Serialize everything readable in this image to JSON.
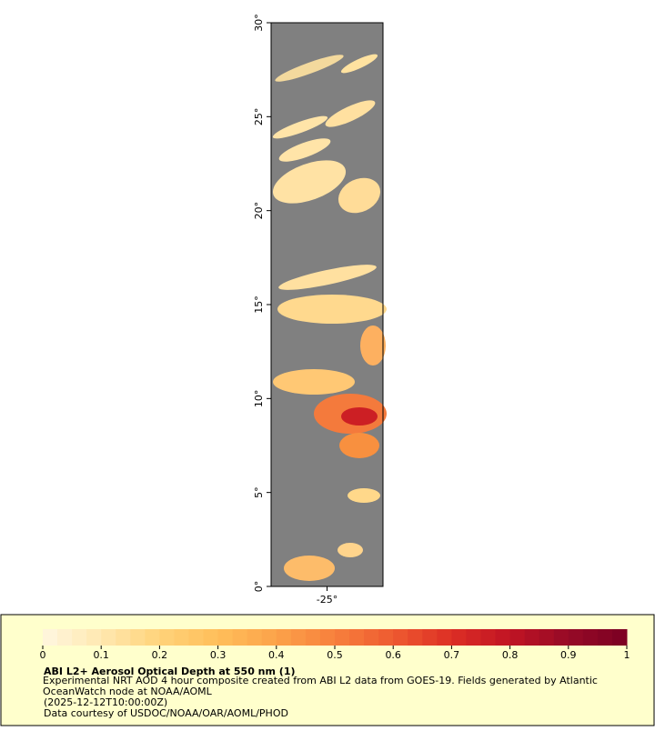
{
  "chart_data": {
    "type": "map",
    "title": "ABI L2+ Aerosol Optical Depth at 550 nm (1)",
    "subtitle": "Experimental NRT AOD 4 hour composite created from ABI L2 data from GOES-19. Fields generated by Atlantic OceanWatch node at NOAA/AOML",
    "time": "(2025-12-12T10:00:00Z)",
    "credit": "Data courtesy of USDOC/NOAA/OAR/AOML/PHOD",
    "xlim": [
      -28,
      -22
    ],
    "ylim": [
      0,
      30
    ],
    "xticks": [
      {
        "value": -25,
        "label": "-25°"
      }
    ],
    "yticks": [
      {
        "value": 0,
        "label": "0°"
      },
      {
        "value": 5,
        "label": "5°"
      },
      {
        "value": 10,
        "label": "10°"
      },
      {
        "value": 15,
        "label": "15°"
      },
      {
        "value": 20,
        "label": "20°"
      },
      {
        "value": 25,
        "label": "25°"
      },
      {
        "value": 30,
        "label": "30°"
      }
    ],
    "background_color": "#808080",
    "colorbar": {
      "lim": [
        0,
        1
      ],
      "ticks": [
        0,
        0.1,
        0.2,
        0.3,
        0.4,
        0.5,
        0.6,
        0.7,
        0.8,
        0.9,
        1
      ],
      "colors": [
        "#fff7e0",
        "#ffe8b0",
        "#ffd37a",
        "#ffbe5a",
        "#fca24a",
        "#f7803c",
        "#ee5a30",
        "#dd2e25",
        "#c01424",
        "#960a26",
        "#7a0022"
      ]
    }
  }
}
